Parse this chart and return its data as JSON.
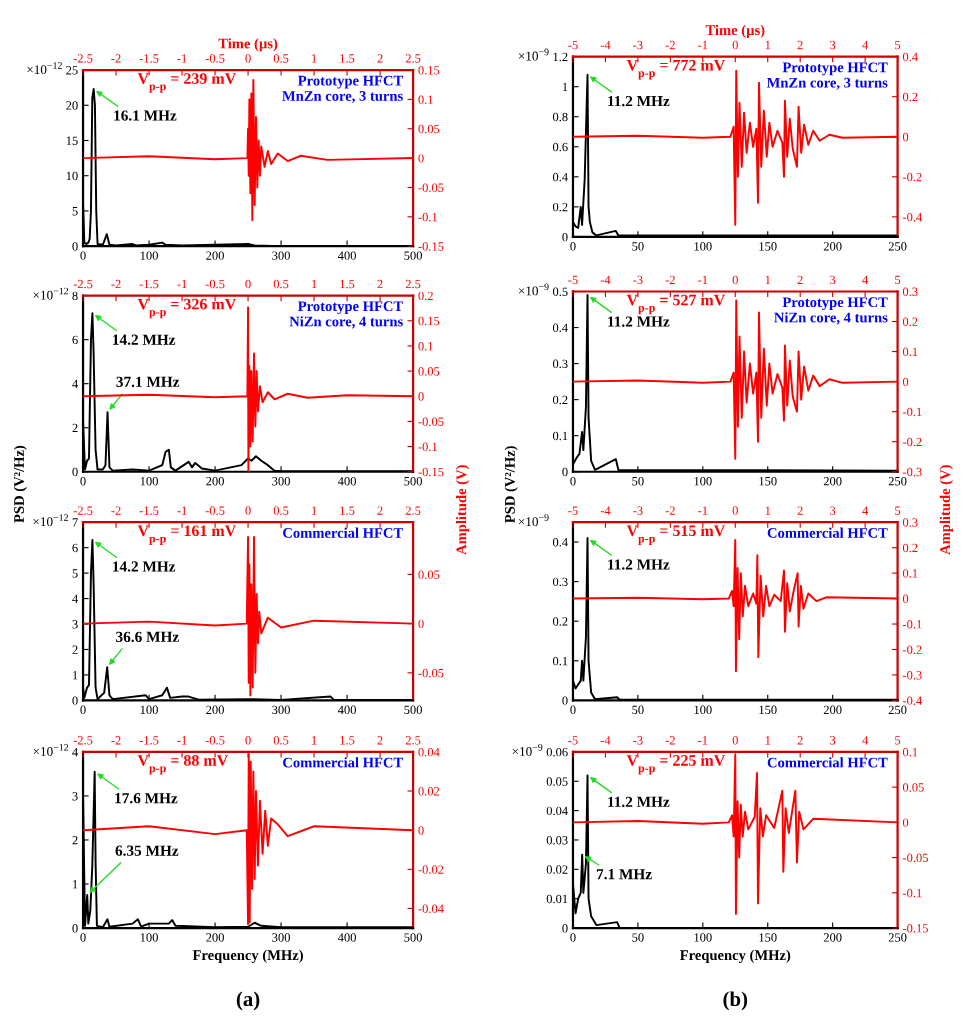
{
  "chart_data": [
    {
      "type": "line",
      "xlim": [
        0,
        500
      ],
      "xticks": [
        0,
        100,
        200,
        300,
        400,
        500
      ],
      "ylim": [
        0,
        25
      ],
      "yticks": [
        0,
        5,
        10,
        15,
        20,
        25
      ],
      "series": [
        {
          "color": "#000000",
          "x": [
            0,
            2,
            5,
            8,
            10,
            12,
            14,
            16.1,
            18,
            20,
            22,
            30,
            36,
            40,
            50,
            75,
            80,
            100,
            120,
            125,
            150,
            250,
            260,
            300,
            400,
            500
          ],
          "values": [
            6,
            0.5,
            0.3,
            0.5,
            1,
            5,
            21,
            22.3,
            20,
            5,
            0.3,
            0.2,
            1.7,
            0.2,
            0.1,
            0.3,
            0.1,
            0.2,
            0.5,
            0.2,
            0.1,
            0.3,
            0.1,
            0,
            0,
            0
          ]
        }
      ],
      "annotations": [
        "×10$^{−12}$",
        {
          "text": "16.1 MHz",
          "x": 16.1,
          "y": 22.3
        }
      ]
    },
    {
      "type": "line",
      "xlabel": "Time (µs)",
      "xlim": [
        -2.5,
        2.5
      ],
      "xticks": [
        -2.5,
        -2,
        -1.5,
        -1,
        -0.5,
        0,
        0.5,
        1,
        1.5,
        2,
        2.5
      ],
      "ylim": [
        -0.15,
        0.15
      ],
      "yticks": [
        -0.15,
        -0.1,
        -0.05,
        0,
        0.05,
        0.1,
        0.15
      ],
      "series": [
        {
          "color": "#ff0000",
          "x": [
            -2.5,
            -1.5,
            -0.5,
            -0.01,
            0,
            0.01,
            0.02,
            0.035,
            0.05,
            0.065,
            0.08,
            0.1,
            0.12,
            0.14,
            0.16,
            0.18,
            0.2,
            0.25,
            0.3,
            0.35,
            0.45,
            0.6,
            0.8,
            1.2,
            2.5
          ],
          "values": [
            0,
            0.003,
            -0.002,
            0,
            0.05,
            -0.03,
            0.1,
            -0.06,
            0.11,
            -0.106,
            0.133,
            -0.08,
            0.07,
            -0.05,
            0.03,
            -0.03,
            0.02,
            -0.015,
            0.012,
            -0.01,
            0.008,
            -0.005,
            0.004,
            -0.003,
            0
          ]
        }
      ],
      "annotations": [
        "V$_{p-p}$ = 239 mV",
        "Prototype HFCT\nMnZn core, 3 turns"
      ]
    },
    {
      "type": "line",
      "ylabel": "PSD (V²/Hz)",
      "xlim": [
        0,
        500
      ],
      "xticks": [
        0,
        100,
        200,
        300,
        400,
        500
      ],
      "ylim": [
        0,
        8
      ],
      "yticks": [
        0,
        2,
        4,
        6,
        8
      ],
      "series": [
        {
          "color": "#000000",
          "x": [
            0,
            3,
            6,
            9,
            12,
            14.2,
            16,
            19,
            22,
            30,
            34,
            37.1,
            40,
            45,
            75,
            100,
            120,
            125,
            130,
            133,
            140,
            160,
            165,
            170,
            180,
            200,
            240,
            250,
            255,
            262,
            270,
            280,
            290,
            300,
            500
          ],
          "values": [
            2.3,
            0.1,
            0.5,
            0.6,
            6,
            7.2,
            5.4,
            1,
            0.1,
            0.1,
            0.3,
            2.7,
            0.2,
            0.05,
            0.1,
            0.05,
            0.3,
            0.9,
            1.0,
            0.2,
            0.05,
            0.45,
            0.2,
            0.4,
            0.15,
            0.05,
            0.3,
            0.6,
            0.5,
            0.7,
            0.5,
            0.3,
            0.05,
            0.02,
            0.02
          ]
        }
      ],
      "annotations": [
        "×10$^{−12}$",
        {
          "text": "14.2 MHz",
          "x": 14.2,
          "y": 7.2
        },
        {
          "text": "37.1 MHz",
          "x": 37.1,
          "y": 2.7
        }
      ]
    },
    {
      "type": "line",
      "xlim": [
        -2.5,
        2.5
      ],
      "xticks": [
        -2.5,
        -2,
        -1.5,
        -1,
        -0.5,
        0,
        0.5,
        1,
        1.5,
        2,
        2.5
      ],
      "ylim": [
        -0.15,
        0.2
      ],
      "yticks": [
        -0.15,
        -0.1,
        -0.05,
        0,
        0.05,
        0.1,
        0.15,
        0.2
      ],
      "series": [
        {
          "color": "#ff0000",
          "x": [
            -2.5,
            -1.5,
            -0.5,
            -0.01,
            0,
            0.005,
            0.02,
            0.035,
            0.05,
            0.07,
            0.09,
            0.11,
            0.13,
            0.15,
            0.18,
            0.22,
            0.3,
            0.4,
            0.6,
            0.9,
            1.5,
            2.5
          ],
          "values": [
            0,
            0.003,
            -0.002,
            0,
            0.177,
            -0.149,
            0.06,
            -0.1,
            0.05,
            -0.09,
            0.085,
            -0.06,
            0.05,
            -0.03,
            0.02,
            -0.012,
            0.008,
            -0.006,
            0.005,
            -0.003,
            0.002,
            0
          ]
        }
      ],
      "annotations": [
        "V$_{p-p}$ = 326 mV",
        "Prototype HFCT\nNiZn core, 4 turns"
      ]
    },
    {
      "type": "line",
      "xlim": [
        0,
        500
      ],
      "xticks": [
        0,
        100,
        200,
        300,
        400,
        500
      ],
      "ylim": [
        0,
        7
      ],
      "yticks": [
        0,
        1,
        2,
        3,
        4,
        5,
        6,
        7
      ],
      "series": [
        {
          "color": "#000000",
          "x": [
            0,
            2,
            6,
            9,
            12,
            14.2,
            16,
            19,
            22,
            32,
            36.6,
            40,
            45,
            95,
            100,
            120,
            127,
            132,
            150,
            160,
            175,
            250,
            300,
            375,
            380,
            500
          ],
          "values": [
            0.5,
            0.1,
            0.5,
            0.6,
            5,
            6.3,
            4.6,
            0.5,
            0.05,
            0.3,
            1.3,
            0.2,
            0.05,
            0.2,
            0.05,
            0.2,
            0.5,
            0.1,
            0.15,
            0.15,
            0.03,
            0.05,
            0.02,
            0.15,
            0.02,
            0.02
          ]
        }
      ],
      "annotations": [
        "×10$^{−12}$",
        {
          "text": "14.2 MHz",
          "x": 14.2,
          "y": 6.3
        },
        {
          "text": "36.6 MHz",
          "x": 36.6,
          "y": 1.3
        }
      ]
    },
    {
      "type": "line",
      "ylabel": "Amplitude (V)",
      "xlim": [
        -2.5,
        2.5
      ],
      "xticks": [
        -2.5,
        -2,
        -1.5,
        -1,
        -0.5,
        0,
        0.5,
        1,
        1.5,
        2,
        2.5
      ],
      "ylim": [
        -0.078,
        0.103
      ],
      "yticks": [
        -0.05,
        0,
        0.05
      ],
      "series": [
        {
          "color": "#ff0000",
          "x": [
            -2.5,
            -1.5,
            -0.5,
            -0.02,
            0,
            0.01,
            0.02,
            0.035,
            0.05,
            0.07,
            0.09,
            0.11,
            0.13,
            0.15,
            0.17,
            0.2,
            0.3,
            0.5,
            1,
            2.5
          ],
          "values": [
            0,
            0.002,
            -0.002,
            0,
            0.088,
            -0.06,
            0.06,
            -0.073,
            0.04,
            -0.065,
            0.088,
            -0.05,
            0.03,
            -0.02,
            0.012,
            -0.01,
            0.006,
            -0.004,
            0.003,
            0
          ]
        }
      ],
      "annotations": [
        "V$_{p-p}$ = 161 mV",
        "Commercial HFCT"
      ]
    },
    {
      "type": "line",
      "xlabel": "Frequency (MHz)",
      "xlim": [
        0,
        500
      ],
      "xticks": [
        0,
        100,
        200,
        300,
        400,
        500
      ],
      "ylim": [
        0,
        4
      ],
      "yticks": [
        0,
        1,
        2,
        3,
        4
      ],
      "series": [
        {
          "color": "#000000",
          "x": [
            0,
            3,
            6.35,
            8,
            11,
            14,
            17.6,
            19,
            21,
            30,
            37,
            40,
            75,
            83,
            88,
            100,
            130,
            135,
            140,
            200,
            250,
            260,
            270,
            300,
            500
          ],
          "values": [
            3,
            0.05,
            0.75,
            0.1,
            0.4,
            1.4,
            3.55,
            1.5,
            0.05,
            0.02,
            0.2,
            0.03,
            0.1,
            0.2,
            0.03,
            0.1,
            0.1,
            0.18,
            0.05,
            0.02,
            0.03,
            0.12,
            0.05,
            0.02,
            0.02
          ]
        }
      ],
      "annotations": [
        "×10$^{−12}$",
        {
          "text": "17.6 MHz",
          "x": 17.6,
          "y": 3.55
        },
        {
          "text": "6.35 MHz",
          "x": 6.35,
          "y": 0.75
        },
        "(a)"
      ]
    },
    {
      "type": "line",
      "xlim": [
        -2.5,
        2.5
      ],
      "xticks": [
        -2.5,
        -2,
        -1.5,
        -1,
        -0.5,
        0,
        0.5,
        1,
        1.5,
        2,
        2.5
      ],
      "ylim": [
        -0.05,
        0.04
      ],
      "yticks": [
        -0.04,
        -0.02,
        0,
        0.02,
        0.04
      ],
      "series": [
        {
          "color": "#ff0000",
          "x": [
            -2.5,
            -1.5,
            -0.5,
            -0.02,
            0,
            0.01,
            0.025,
            0.04,
            0.06,
            0.08,
            0.1,
            0.12,
            0.15,
            0.18,
            0.22,
            0.26,
            0.3,
            0.35,
            0.45,
            0.6,
            1,
            2.5
          ],
          "values": [
            0,
            0.002,
            -0.002,
            0,
            -0.048,
            0.039,
            -0.047,
            0.035,
            -0.03,
            0.03,
            -0.025,
            0.02,
            -0.018,
            0.015,
            -0.012,
            0.01,
            -0.008,
            0.006,
            0.003,
            -0.003,
            0.002,
            0
          ]
        }
      ],
      "annotations": [
        "V$_{p-p}$ = 88 mV",
        "Commercial HFCT"
      ]
    },
    {
      "type": "line",
      "xlim": [
        0,
        250
      ],
      "xticks": [
        0,
        50,
        100,
        150,
        200,
        250
      ],
      "ylim": [
        0,
        1.2
      ],
      "yticks": [
        0,
        0.2,
        0.4,
        0.6,
        0.8,
        1,
        1.2
      ],
      "series": [
        {
          "color": "#000000",
          "x": [
            0,
            2,
            4,
            6,
            7,
            9,
            11.2,
            12,
            13,
            15,
            18,
            33,
            35,
            250
          ],
          "values": [
            0.1,
            0.07,
            0.06,
            0.2,
            0.08,
            0.38,
            1.08,
            0.2,
            0.1,
            0.03,
            0.01,
            0.04,
            0.01,
            0.01
          ]
        }
      ],
      "annotations": [
        "×10$^{−9}$",
        {
          "text": "11.2 MHz",
          "x": 11.2,
          "y": 1.08
        }
      ]
    },
    {
      "type": "line",
      "xlabel": "Time (µs)",
      "xlim": [
        -5,
        5
      ],
      "xticks": [
        -5,
        -4,
        -3,
        -2,
        -1,
        0,
        1,
        2,
        3,
        4,
        5
      ],
      "ylim": [
        -0.5,
        0.4
      ],
      "yticks": [
        -0.4,
        -0.2,
        0,
        0.2,
        0.4
      ],
      "series": [
        {
          "color": "#ff0000",
          "x": [
            -5,
            -3,
            -1,
            -0.15,
            -0.05,
            0,
            0.03,
            0.08,
            0.13,
            0.2,
            0.27,
            0.35,
            0.45,
            0.55,
            0.65,
            0.7,
            0.73,
            0.8,
            0.88,
            0.97,
            1.05,
            1.15,
            1.3,
            1.45,
            1.5,
            1.53,
            1.6,
            1.68,
            1.77,
            1.9,
            1.95,
            2.03,
            2.12,
            2.25,
            2.4,
            2.6,
            2.9,
            3.3,
            5
          ],
          "values": [
            0,
            0.005,
            -0.005,
            0,
            0.05,
            -0.44,
            0.33,
            -0.2,
            0.17,
            -0.15,
            0.12,
            -0.08,
            0.07,
            -0.05,
            0.04,
            -0.33,
            0.27,
            -0.15,
            0.13,
            -0.1,
            0.07,
            -0.05,
            0.03,
            -0.03,
            -0.2,
            0.18,
            -0.1,
            0.09,
            -0.06,
            -0.15,
            0.15,
            -0.08,
            0.06,
            -0.04,
            0.03,
            -0.02,
            0.01,
            -0.005,
            0
          ]
        }
      ],
      "annotations": [
        "V$_{p-p}$ = 772 mV",
        "Prototype HFCT\nMnZn core, 3 turns"
      ]
    },
    {
      "type": "line",
      "ylabel": "PSD (V²/Hz)",
      "xlim": [
        0,
        250
      ],
      "xticks": [
        0,
        50,
        100,
        150,
        200,
        250
      ],
      "ylim": [
        0,
        0.5
      ],
      "yticks": [
        0,
        0.1,
        0.2,
        0.3,
        0.4,
        0.5
      ],
      "series": [
        {
          "color": "#000000",
          "x": [
            0,
            3,
            5,
            7,
            8,
            10,
            11.2,
            12,
            14,
            17,
            33,
            35,
            250
          ],
          "values": [
            0.02,
            0.04,
            0.05,
            0.11,
            0.06,
            0.18,
            0.49,
            0.15,
            0.03,
            0.005,
            0.035,
            0.005,
            0.003
          ]
        }
      ],
      "annotations": [
        "×10$^{−9}$",
        {
          "text": "11.2 MHz",
          "x": 11.2,
          "y": 0.49
        }
      ]
    },
    {
      "type": "line",
      "xlim": [
        -5,
        5
      ],
      "xticks": [
        -5,
        -4,
        -3,
        -2,
        -1,
        0,
        1,
        2,
        3,
        4,
        5
      ],
      "ylim": [
        -0.3,
        0.3
      ],
      "yticks": [
        -0.3,
        -0.2,
        -0.1,
        0,
        0.1,
        0.2,
        0.3
      ],
      "series": [
        {
          "color": "#ff0000",
          "x": [
            -5,
            -3,
            -1,
            -0.15,
            -0.05,
            0,
            0.03,
            0.08,
            0.13,
            0.2,
            0.27,
            0.35,
            0.45,
            0.55,
            0.65,
            0.7,
            0.73,
            0.8,
            0.88,
            0.97,
            1.05,
            1.15,
            1.3,
            1.45,
            1.5,
            1.53,
            1.6,
            1.68,
            1.77,
            1.9,
            1.95,
            2.03,
            2.12,
            2.25,
            2.4,
            2.6,
            2.9,
            3.3,
            5
          ],
          "values": [
            0,
            0.004,
            -0.004,
            0,
            0.03,
            -0.257,
            0.27,
            -0.15,
            0.15,
            -0.12,
            0.1,
            -0.07,
            0.06,
            -0.04,
            0.03,
            -0.2,
            0.23,
            -0.12,
            0.11,
            -0.08,
            0.06,
            -0.04,
            0.025,
            -0.02,
            -0.13,
            0.12,
            -0.08,
            0.07,
            -0.05,
            -0.1,
            0.1,
            -0.06,
            0.05,
            -0.03,
            0.02,
            -0.015,
            0.008,
            -0.004,
            0
          ]
        }
      ],
      "annotations": [
        "V$_{p-p}$ = 527 mV",
        "Prototype HFCT\nNiZn core, 4 turns"
      ]
    },
    {
      "type": "line",
      "xlim": [
        0,
        250
      ],
      "xticks": [
        0,
        50,
        100,
        150,
        200,
        250
      ],
      "ylim": [
        0,
        0.45
      ],
      "yticks": [
        0,
        0.1,
        0.2,
        0.3,
        0.4
      ],
      "series": [
        {
          "color": "#000000",
          "x": [
            0,
            2,
            4,
            6,
            7,
            8,
            10,
            11.2,
            12,
            14,
            17,
            34,
            36,
            250
          ],
          "values": [
            0.05,
            0.03,
            0.04,
            0.05,
            0.1,
            0.05,
            0.16,
            0.41,
            0.1,
            0.02,
            0.003,
            0.008,
            0.002,
            0.002
          ]
        }
      ],
      "annotations": [
        "×10$^{−9}$",
        {
          "text": "11.2 MHz",
          "x": 11.2,
          "y": 0.41
        }
      ]
    },
    {
      "type": "line",
      "ylabel": "Amplitude (V)",
      "xlim": [
        -5,
        5
      ],
      "xticks": [
        -5,
        -4,
        -3,
        -2,
        -1,
        0,
        1,
        2,
        3,
        4,
        5
      ],
      "ylim": [
        -0.4,
        0.3
      ],
      "yticks": [
        -0.4,
        -0.3,
        -0.2,
        -0.1,
        0,
        0.1,
        0.2,
        0.3
      ],
      "series": [
        {
          "color": "#ff0000",
          "x": [
            -5,
            -3,
            -1,
            -0.2,
            -0.1,
            -0.05,
            0,
            0.02,
            0.07,
            0.12,
            0.17,
            0.23,
            0.3,
            0.4,
            0.55,
            0.65,
            0.68,
            0.71,
            0.78,
            0.86,
            0.95,
            1.05,
            1.2,
            1.4,
            1.5,
            1.53,
            1.6,
            1.68,
            1.8,
            1.92,
            1.95,
            2.02,
            2.1,
            2.25,
            2.5,
            2.8,
            5
          ],
          "values": [
            0,
            0.003,
            -0.003,
            0,
            0.03,
            -0.03,
            0.23,
            -0.285,
            0.12,
            -0.16,
            0.1,
            -0.07,
            0.05,
            -0.03,
            0.02,
            -0.02,
            0.17,
            -0.23,
            0.09,
            -0.07,
            0.05,
            -0.03,
            0.015,
            -0.01,
            0.11,
            -0.13,
            0.06,
            -0.05,
            0.03,
            0.1,
            -0.11,
            0.05,
            -0.04,
            0.02,
            -0.01,
            0.005,
            0
          ]
        }
      ],
      "annotations": [
        "V$_{p-p}$ = 515 mV",
        "Commercial HFCT"
      ]
    },
    {
      "type": "line",
      "xlabel": "Frequency (MHz)",
      "xlim": [
        0,
        250
      ],
      "xticks": [
        0,
        50,
        100,
        150,
        200,
        250
      ],
      "ylim": [
        0,
        0.06
      ],
      "yticks": [
        0,
        0.01,
        0.02,
        0.03,
        0.04,
        0.05,
        0.06
      ],
      "series": [
        {
          "color": "#000000",
          "x": [
            0,
            2,
            4,
            6,
            7.1,
            8,
            10,
            11.2,
            12,
            14,
            18,
            34,
            36,
            250
          ],
          "values": [
            0.015,
            0.005,
            0.01,
            0.012,
            0.025,
            0.012,
            0.022,
            0.052,
            0.01,
            0.004,
            0.001,
            0.002,
            0,
            0
          ]
        }
      ],
      "annotations": [
        "×10$^{−9}$",
        {
          "text": "11.2 MHz",
          "x": 11.2,
          "y": 0.052
        },
        {
          "text": "7.1 MHz",
          "x": 7.1,
          "y": 0.025
        },
        "(b)"
      ]
    },
    {
      "type": "line",
      "xlim": [
        -5,
        5
      ],
      "xticks": [
        -5,
        -4,
        -3,
        -2,
        -1,
        0,
        1,
        2,
        3,
        4,
        5
      ],
      "ylim": [
        -0.15,
        0.1
      ],
      "yticks": [
        -0.15,
        -0.1,
        -0.05,
        0,
        0.05,
        0.1
      ],
      "series": [
        {
          "color": "#ff0000",
          "x": [
            -5,
            -3,
            -1,
            -0.2,
            -0.1,
            -0.05,
            0,
            0.02,
            0.07,
            0.12,
            0.17,
            0.23,
            0.3,
            0.4,
            0.6,
            0.67,
            0.7,
            0.77,
            0.85,
            0.95,
            1.2,
            1.45,
            1.48,
            1.55,
            1.65,
            1.85,
            1.9,
            1.97,
            2.1,
            2.4,
            5
          ],
          "values": [
            0,
            0.002,
            -0.002,
            0,
            0.01,
            -0.02,
            0.095,
            -0.13,
            0.03,
            -0.05,
            0.025,
            -0.02,
            0.015,
            -0.01,
            0.008,
            0.07,
            -0.115,
            0.02,
            -0.02,
            0.01,
            -0.008,
            0.045,
            -0.07,
            0.02,
            -0.015,
            0.045,
            -0.057,
            0.015,
            -0.01,
            0.005,
            0
          ]
        }
      ],
      "annotations": [
        "V$_{p-p}$ = 225 mV",
        "Commercial HFCT"
      ]
    }
  ]
}
